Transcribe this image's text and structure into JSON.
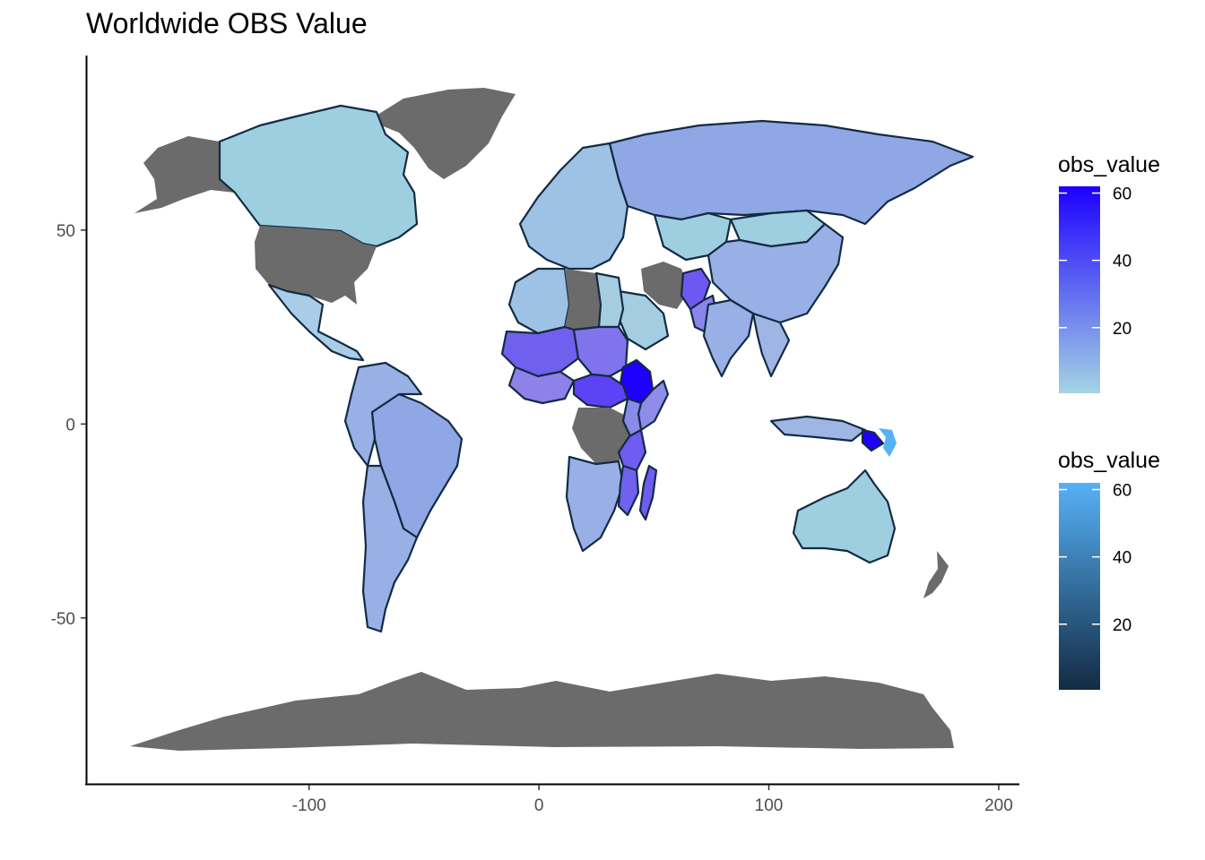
{
  "title": "Worldwide OBS Value",
  "chart_data": {
    "type": "map",
    "projection": "equirectangular (longitude / latitude)",
    "title": "Worldwide OBS Value",
    "xlabel": "",
    "ylabel": "",
    "xlim": [
      -197,
      209
    ],
    "ylim": [
      -93,
      95
    ],
    "x_ticks": [
      -100,
      0,
      100,
      200
    ],
    "y_ticks": [
      -50,
      0,
      50
    ],
    "x_tick_labels": [
      "-100",
      "0",
      "100",
      "200"
    ],
    "y_tick_labels": [
      "-50",
      "0",
      "50"
    ],
    "grid": false,
    "na_color": "#6b6b6b",
    "legends": [
      {
        "title": "obs_value",
        "position": "right-top",
        "color_low": "#a3d4e3",
        "color_high": "#1d00ff",
        "range": [
          0.5,
          62
        ],
        "breaks": [
          20,
          40,
          60
        ],
        "break_labels": [
          "20",
          "40",
          "60"
        ]
      },
      {
        "title": "obs_value",
        "position": "right-bottom",
        "color_low": "#132b43",
        "color_high": "#56b1f7",
        "range": [
          0.5,
          62
        ],
        "breaks": [
          20,
          40,
          60
        ],
        "break_labels": [
          "20",
          "40",
          "60"
        ]
      }
    ],
    "regions_fill_scale_1": [
      {
        "name": "Canada",
        "value": 1
      },
      {
        "name": "Mexico",
        "value": 8
      },
      {
        "name": "Brazil",
        "value": 10
      },
      {
        "name": "Argentina",
        "value": 8
      },
      {
        "name": "Peru",
        "value": 9
      },
      {
        "name": "Colombia",
        "value": 8
      },
      {
        "name": "Bolivia",
        "value": 8
      },
      {
        "name": "Russia",
        "value": 10
      },
      {
        "name": "Kazakhstan",
        "value": 4
      },
      {
        "name": "China",
        "value": 12
      },
      {
        "name": "India",
        "value": 12
      },
      {
        "name": "Mongolia",
        "value": 5
      },
      {
        "name": "Afghanistan",
        "value": 34
      },
      {
        "name": "Pakistan",
        "value": 22
      },
      {
        "name": "Saudi Arabia",
        "value": 6
      },
      {
        "name": "Egypt",
        "value": 7
      },
      {
        "name": "Algeria",
        "value": 10
      },
      {
        "name": "Mali",
        "value": 34
      },
      {
        "name": "Niger",
        "value": 30
      },
      {
        "name": "Chad",
        "value": 28
      },
      {
        "name": "Sudan",
        "value": 22
      },
      {
        "name": "Nigeria",
        "value": 26
      },
      {
        "name": "Central African Republic",
        "value": 36
      },
      {
        "name": "South Sudan",
        "value": 40
      },
      {
        "name": "Ethiopia",
        "value": 60
      },
      {
        "name": "Somalia",
        "value": 22
      },
      {
        "name": "Kenya",
        "value": 20
      },
      {
        "name": "Tanzania",
        "value": 32
      },
      {
        "name": "Mozambique",
        "value": 34
      },
      {
        "name": "Madagascar",
        "value": 36
      },
      {
        "name": "Angola",
        "value": 12
      },
      {
        "name": "Namibia",
        "value": 9
      },
      {
        "name": "South Africa",
        "value": 10
      },
      {
        "name": "Australia",
        "value": 2
      },
      {
        "name": "Indonesia",
        "value": 8
      },
      {
        "name": "Papua New Guinea",
        "value": 56
      },
      {
        "name": "Thailand",
        "value": 9
      },
      {
        "name": "Myanmar",
        "value": 16
      }
    ],
    "regions_fill_scale_2": [
      {
        "name": "Papua New Guinea (islands)",
        "value": 60
      }
    ],
    "regions_na": [
      "United States",
      "Greenland",
      "Antarctica",
      "Iran",
      "Libya",
      "Democratic Republic of the Congo",
      "Western Sahara",
      "New Zealand"
    ]
  }
}
